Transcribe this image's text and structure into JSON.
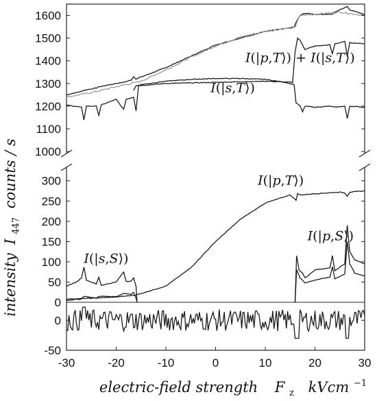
{
  "chart_data": {
    "type": "line",
    "xlabel": "electric-field strength",
    "xlabel_symbol": "F",
    "xlabel_symbol_sub": "z",
    "xlabel_unit": "kVcm",
    "xlabel_unit_sup": "−1",
    "ylabel": "intensity",
    "ylabel_symbol": "I",
    "ylabel_symbol_sub": "447",
    "ylabel_unit": "counts / s",
    "xlim": [
      -30,
      30
    ],
    "x_ticks": [
      "-30",
      "-20",
      "-10",
      "0",
      "10",
      "20",
      "30"
    ],
    "x_tick_values": [
      -30,
      -20,
      -10,
      0,
      10,
      20,
      30
    ],
    "panels": [
      {
        "name": "upper",
        "ylim": [
          1000,
          1650
        ],
        "y_ticks": [
          "1000",
          "1100",
          "1200",
          "1300",
          "1400",
          "1500",
          "1600"
        ],
        "y_tick_values": [
          1000,
          1100,
          1200,
          1300,
          1400,
          1500,
          1600
        ],
        "series": [
          {
            "name": "I(|p,T⟩) + I(|s,T⟩)",
            "color": "#1a1a1a",
            "x": [
              -30,
              -27,
              -26.5,
              -24,
              -23.5,
              -20,
              -18.5,
              -17,
              -16.5,
              -16,
              -10,
              -5,
              0,
              5,
              10,
              15,
              15.8,
              16.2,
              17,
              18,
              20,
              23.5,
              24,
              26.5,
              27,
              30
            ],
            "y": [
              1250,
              1265,
              1270,
              1280,
              1285,
              1300,
              1305,
              1315,
              1330,
              1320,
              1370,
              1420,
              1470,
              1500,
              1530,
              1545,
              1548,
              1570,
              1600,
              1610,
              1605,
              1605,
              1615,
              1640,
              1625,
              1605
            ]
          },
          {
            "name": "measured (grey)",
            "color": "#9a9a9a",
            "x": [
              -30,
              -25,
              -20,
              -15,
              -10,
              -5,
              0,
              5,
              10,
              15,
              16,
              17,
              20,
              25,
              30
            ],
            "y": [
              1240,
              1260,
              1285,
              1310,
              1360,
              1415,
              1465,
              1505,
              1530,
              1545,
              1550,
              1600,
              1605,
              1615,
              1600
            ]
          },
          {
            "name": "lower branch",
            "color": "#1a1a1a",
            "x": [
              -30,
              -27,
              -26.5,
              -26,
              -24,
              -23.5,
              -23,
              -20,
              -18.5,
              -18,
              -16.5,
              -16,
              -15.5,
              -10,
              0,
              10,
              15.5,
              16,
              16.5,
              17,
              18,
              20,
              23,
              23.5,
              24,
              26,
              26.5,
              27,
              30
            ],
            "y": [
              1205,
              1195,
              1140,
              1200,
              1200,
              1160,
              1205,
              1230,
              1185,
              1230,
              1240,
              1180,
              1290,
              1300,
              1305,
              1310,
              1305,
              1440,
              1500,
              1490,
              1450,
              1465,
              1470,
              1430,
              1475,
              1485,
              1420,
              1480,
              1475
            ]
          },
          {
            "name": "I(|s,T⟩)",
            "color": "#1a1a1a",
            "x": [
              -16.5,
              -16,
              -15,
              -10,
              -5,
              0,
              5,
              10,
              14,
              15.8,
              16.2,
              17,
              17.5,
              18,
              20,
              23,
              24,
              26,
              26.5,
              27,
              30
            ],
            "y": [
              1270,
              1290,
              1295,
              1310,
              1318,
              1322,
              1322,
              1318,
              1305,
              1295,
              1215,
              1200,
              1175,
              1200,
              1195,
              1200,
              1195,
              1200,
              1145,
              1200,
              1195
            ]
          }
        ]
      },
      {
        "name": "middle",
        "ylim": [
          0,
          330
        ],
        "y_ticks": [
          "0",
          "50",
          "100",
          "150",
          "200",
          "250",
          "300"
        ],
        "y_tick_values": [
          0,
          50,
          100,
          150,
          200,
          250,
          300
        ],
        "series": [
          {
            "name": "I(|p,T⟩)",
            "color": "#1a1a1a",
            "x": [
              -30,
              -25,
              -20,
              -16,
              -10,
              -5,
              0,
              5,
              10,
              15,
              16.2,
              16.5,
              17,
              20,
              25,
              26,
              26.5,
              27,
              30
            ],
            "y": [
              8,
              10,
              13,
              18,
              40,
              85,
              150,
              205,
              245,
              265,
              252,
              268,
              265,
              268,
              272,
              270,
              262,
              272,
              275
            ]
          },
          {
            "name": "I(|s,S⟩)",
            "color": "#1a1a1a",
            "x": [
              -30,
              -28,
              -27,
              -26.5,
              -26,
              -24,
              -23.5,
              -23,
              -20,
              -18.5,
              -18,
              -17,
              -16.5,
              -16,
              -15.8
            ],
            "y": [
              40,
              50,
              60,
              87,
              55,
              45,
              62,
              42,
              50,
              75,
              52,
              52,
              60,
              40,
              0
            ]
          },
          {
            "name": "I(|p,S⟩)",
            "color": "#1a1a1a",
            "x": [
              16,
              16.3,
              16.8,
              17.5,
              18,
              20,
              23,
              23.5,
              24,
              26,
              26.5,
              27,
              28,
              30
            ],
            "y": [
              0,
              115,
              80,
              72,
              60,
              80,
              85,
              115,
              78,
              95,
              190,
              125,
              105,
              95
            ]
          },
          {
            "name": "I(|p,S⟩) lower",
            "color": "#1a1a1a",
            "x": [
              16,
              16.3,
              17,
              18,
              20,
              23,
              23.5,
              24,
              26,
              26.5,
              27,
              28,
              30
            ],
            "y": [
              0,
              80,
              60,
              48,
              55,
              62,
              88,
              58,
              70,
              150,
              95,
              72,
              65
            ]
          },
          {
            "name": "I(|s,S⟩) lower",
            "color": "#1a1a1a",
            "x": [
              -30,
              -27,
              -26.5,
              -24,
              -23.5,
              -20,
              -18.5,
              -17,
              -16.5,
              -16,
              -15.8
            ],
            "y": [
              5,
              8,
              15,
              10,
              15,
              14,
              22,
              20,
              25,
              10,
              0
            ]
          }
        ]
      },
      {
        "name": "residual",
        "ylim": [
          -50,
          30
        ],
        "y_ticks": [
          "-50",
          "0"
        ],
        "y_tick_values": [
          -50,
          0
        ],
        "series": [
          {
            "name": "residual",
            "color": "#1a1a1a",
            "noise_amplitude": 18
          }
        ]
      }
    ],
    "annotations": [
      {
        "text_parts": [
          "I",
          "(|",
          "p",
          ",",
          "T",
          "⟩) + ",
          "I",
          "(|",
          "s",
          ",",
          "T",
          "⟩)"
        ],
        "x": 6.0,
        "y": 1395,
        "panel": "upper"
      },
      {
        "text_parts": [
          "I",
          "(|",
          "s",
          ",",
          "T",
          "⟩)"
        ],
        "x": -1.0,
        "y": 1262,
        "panel": "upper"
      },
      {
        "text_parts": [
          "I",
          "(|",
          "p",
          ",",
          "T",
          "⟩)"
        ],
        "x": 8.5,
        "y": 290,
        "panel": "middle"
      },
      {
        "text_parts": [
          "I",
          "(|",
          "p",
          ",",
          "S",
          "⟩)"
        ],
        "x": 18.5,
        "y": 153,
        "panel": "middle"
      },
      {
        "text_parts": [
          "I",
          "(|",
          "s",
          ",",
          "S",
          "⟩)"
        ],
        "x": -26.5,
        "y": 97,
        "panel": "middle"
      }
    ]
  }
}
